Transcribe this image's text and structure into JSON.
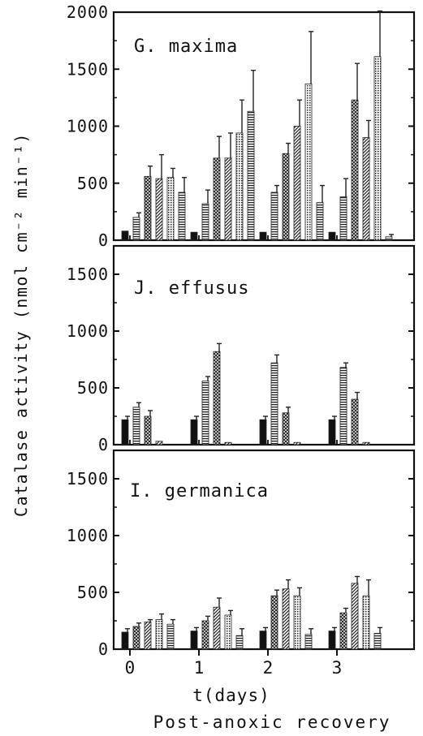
{
  "figure": {
    "ylabel": "Catalase activity (nmol cm⁻² min⁻¹)",
    "xlabel": "t(days)",
    "caption": "Post-anoxic recovery"
  },
  "chart_data": [
    {
      "type": "bar",
      "title": "G. maxima",
      "categories": [
        "0",
        "1",
        "2",
        "3"
      ],
      "ylim": [
        0,
        2000
      ],
      "yticks": [
        0,
        500,
        1000,
        1500,
        2000
      ],
      "series": [
        {
          "values": [
            80,
            70,
            70,
            70
          ],
          "errors": [
            0,
            0,
            0,
            0
          ]
        },
        {
          "values": [
            200,
            320,
            420,
            380
          ],
          "errors": [
            40,
            120,
            60,
            160
          ]
        },
        {
          "values": [
            560,
            720,
            760,
            1230
          ],
          "errors": [
            90,
            190,
            90,
            320
          ]
        },
        {
          "values": [
            540,
            720,
            1000,
            900
          ],
          "errors": [
            210,
            220,
            230,
            150
          ]
        },
        {
          "values": [
            550,
            940,
            1370,
            1610
          ],
          "errors": [
            80,
            290,
            460,
            400
          ]
        },
        {
          "values": [
            420,
            1130,
            330,
            30
          ],
          "errors": [
            130,
            360,
            150,
            20
          ]
        }
      ]
    },
    {
      "type": "bar",
      "title": "J. effusus",
      "categories": [
        "0",
        "1",
        "2",
        "3"
      ],
      "ylim": [
        0,
        1750
      ],
      "yticks": [
        0,
        500,
        1000,
        1500
      ],
      "series": [
        {
          "values": [
            220,
            220,
            220,
            220
          ],
          "errors": [
            30,
            30,
            30,
            30
          ]
        },
        {
          "values": [
            330,
            560,
            720,
            680
          ],
          "errors": [
            40,
            40,
            70,
            40
          ]
        },
        {
          "values": [
            250,
            820,
            280,
            400
          ],
          "errors": [
            50,
            70,
            50,
            60
          ]
        },
        {
          "values": [
            30,
            20,
            20,
            20
          ],
          "errors": [
            0,
            0,
            0,
            0
          ]
        }
      ]
    },
    {
      "type": "bar",
      "title": "I. germanica",
      "categories": [
        "0",
        "1",
        "2",
        "3"
      ],
      "ylim": [
        0,
        1750
      ],
      "yticks": [
        0,
        500,
        1000,
        1500
      ],
      "series": [
        {
          "values": [
            150,
            160,
            160,
            160
          ],
          "errors": [
            30,
            30,
            30,
            30
          ]
        },
        {
          "values": [
            200,
            250,
            470,
            320
          ],
          "errors": [
            30,
            40,
            50,
            40
          ]
        },
        {
          "values": [
            240,
            370,
            530,
            580
          ],
          "errors": [
            20,
            80,
            80,
            60
          ]
        },
        {
          "values": [
            260,
            300,
            470,
            470
          ],
          "errors": [
            50,
            40,
            70,
            140
          ]
        },
        {
          "values": [
            220,
            120,
            130,
            140
          ],
          "errors": [
            40,
            60,
            50,
            50
          ]
        }
      ]
    }
  ]
}
